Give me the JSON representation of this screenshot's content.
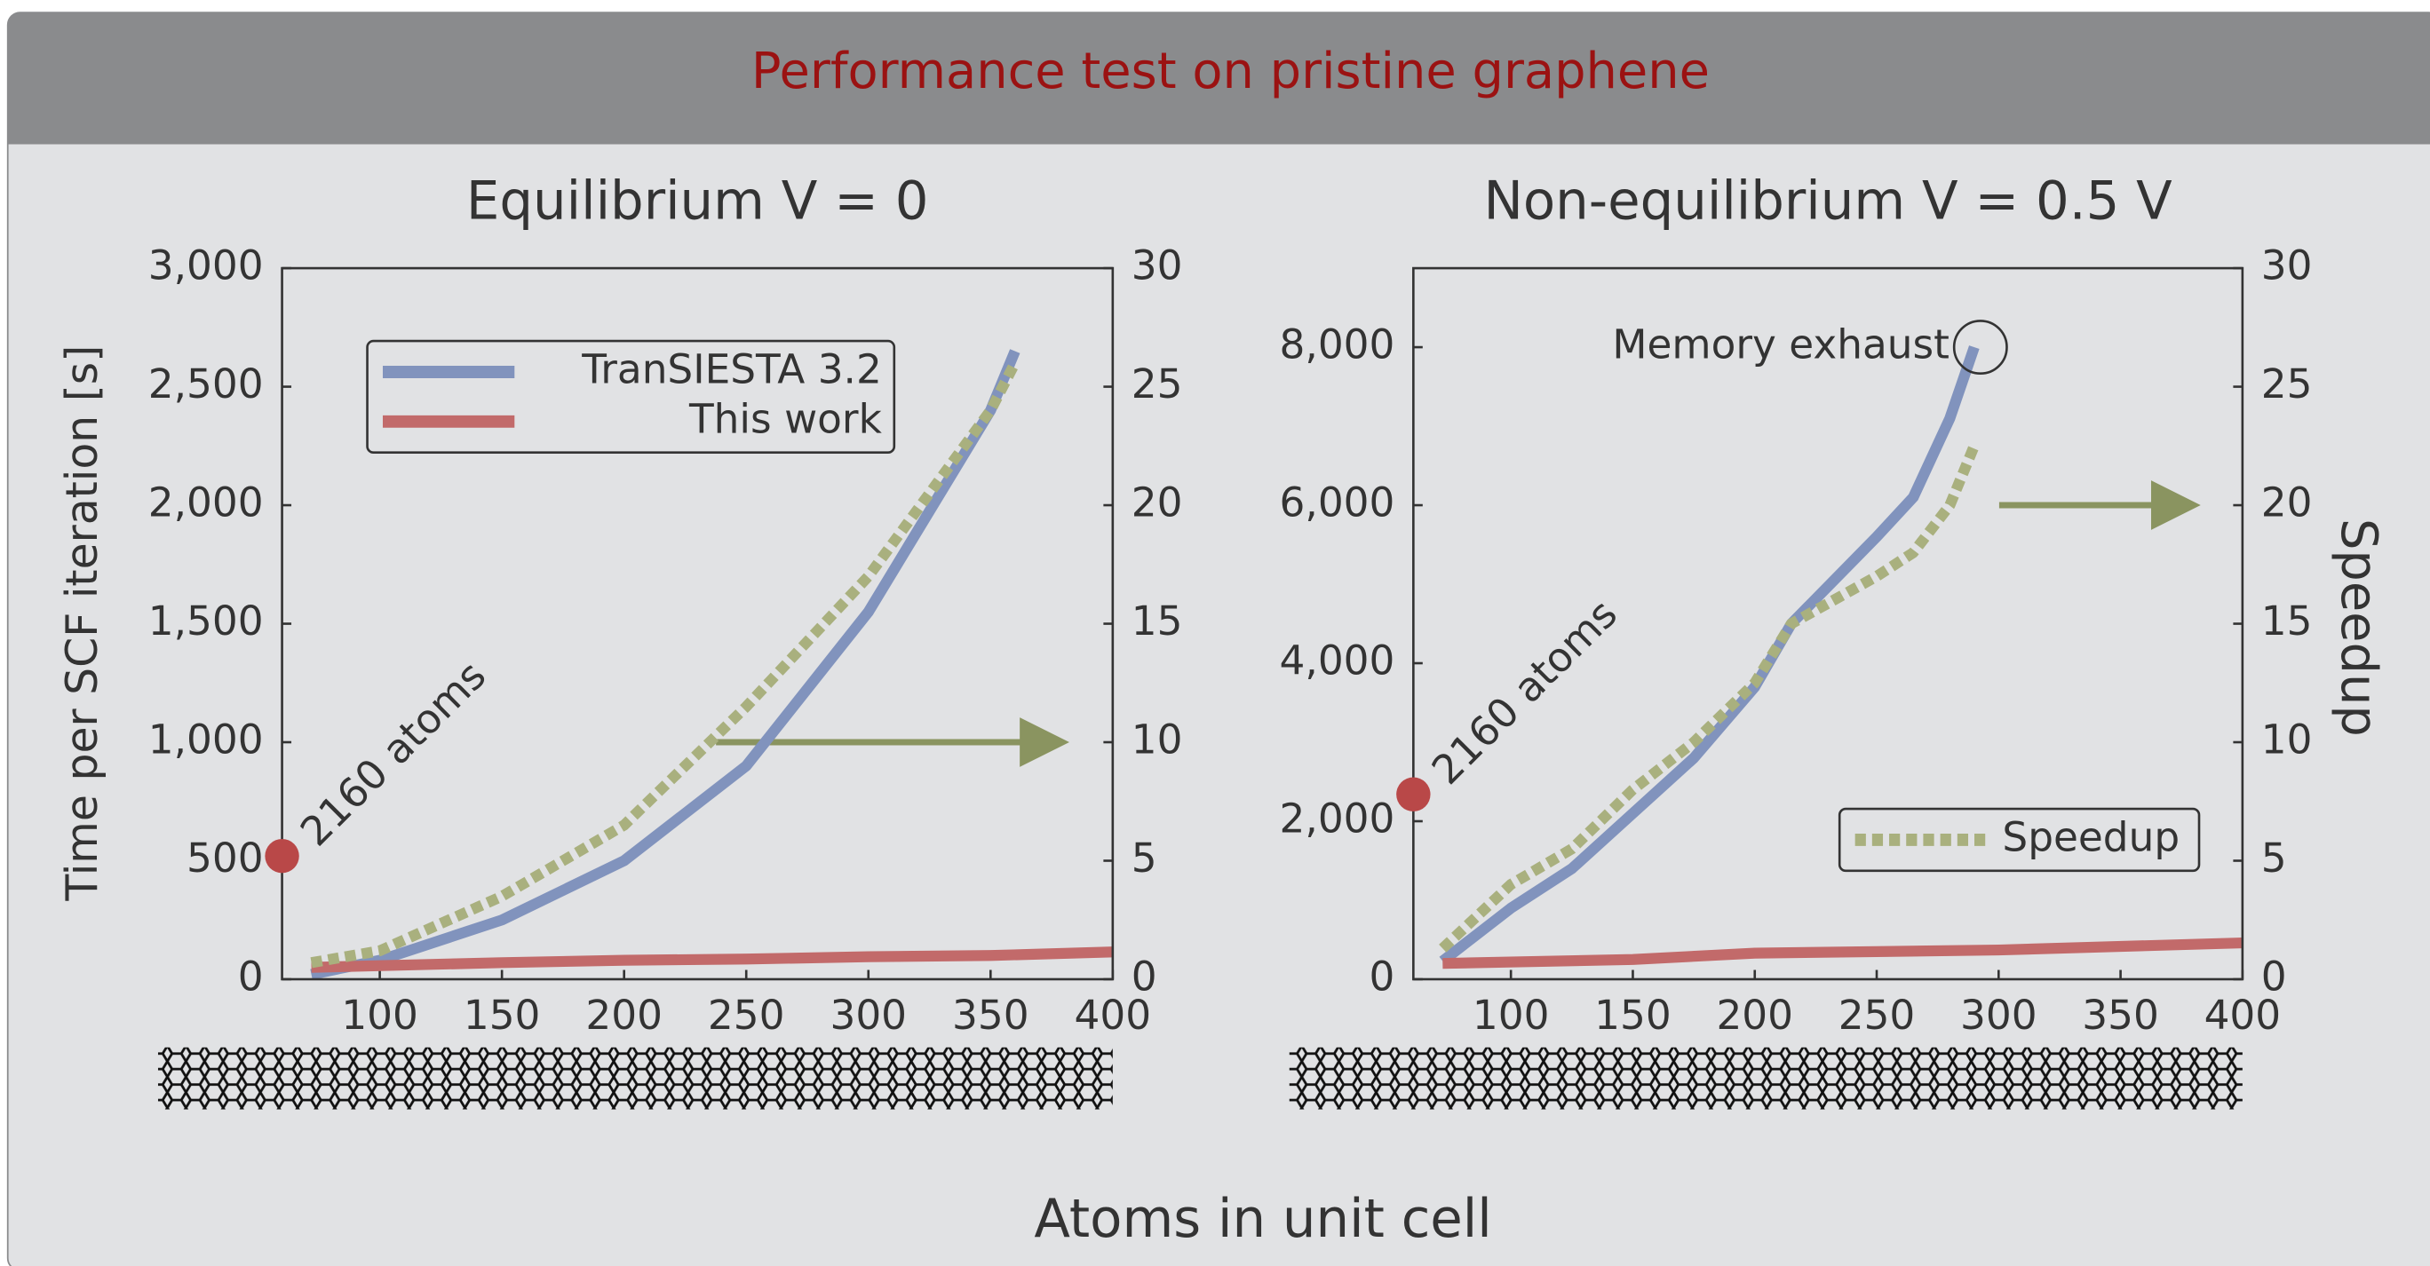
{
  "title": "Performance test on pristine graphene",
  "xlabel": "Atoms in unit cell",
  "chart_data": [
    {
      "type": "line",
      "title": "Equilibrium V = 0",
      "ylabel": "Time per SCF iteration [s]",
      "xlim": [
        60,
        400
      ],
      "xticks": [
        100,
        150,
        200,
        250,
        300,
        350,
        400
      ],
      "ylim": [
        0,
        3000
      ],
      "yticks": [
        0,
        500,
        {
          "value": 1000,
          "label": "1,000"
        },
        {
          "value": 1500,
          "label": "1,500"
        },
        {
          "value": 2000,
          "label": "2,000"
        },
        {
          "value": 2500,
          "label": "2,500"
        },
        {
          "value": 3000,
          "label": "3,000"
        }
      ],
      "y2lim": [
        0,
        30
      ],
      "y2ticks": [
        0,
        5,
        10,
        15,
        20,
        25,
        30
      ],
      "legend": "upper left",
      "series": [
        {
          "name": "TranSIESTA 3.2",
          "color": "#8193bd",
          "legend": true,
          "x": [
            72,
            100,
            150,
            200,
            250,
            300,
            350,
            360
          ],
          "values": [
            20,
            80,
            250,
            500,
            900,
            1550,
            2400,
            2650
          ]
        },
        {
          "name": "This work",
          "color": "#c26a6a",
          "legend": true,
          "x": [
            72,
            150,
            200,
            250,
            300,
            350,
            400
          ],
          "values": [
            50,
            70,
            80,
            85,
            95,
            100,
            115
          ]
        },
        {
          "name": "Speedup",
          "color": "#a9b07e",
          "legend": false,
          "axis": "y2",
          "x": [
            72,
            100,
            150,
            200,
            250,
            300,
            350,
            360
          ],
          "values": [
            0.7,
            1.2,
            3.5,
            6.5,
            11.5,
            17,
            24,
            26
          ]
        }
      ],
      "annotations": [
        {
          "text": "2160 atoms",
          "x": 60,
          "y": 520
        }
      ]
    },
    {
      "type": "line",
      "title": "Non-equilibrium V = 0.5 V",
      "y2label": "Speedup",
      "xlim": [
        60,
        400
      ],
      "xticks": [
        100,
        150,
        200,
        250,
        300,
        350,
        400
      ],
      "ylim": [
        0,
        9000
      ],
      "yticks": [
        0,
        {
          "value": 2000,
          "label": "2,000"
        },
        {
          "value": 4000,
          "label": "4,000"
        },
        {
          "value": 6000,
          "label": "6,000"
        },
        {
          "value": 8000,
          "label": "8,000"
        }
      ],
      "y2lim": [
        0,
        30
      ],
      "y2ticks": [
        0,
        5,
        10,
        15,
        20,
        25,
        30
      ],
      "legend": "lower right",
      "series": [
        {
          "name": "TranSIESTA 3.2",
          "color": "#8193bd",
          "legend": false,
          "x": [
            72,
            100,
            125,
            150,
            175,
            200,
            215,
            250,
            265,
            280,
            290
          ],
          "values": [
            230,
            900,
            1400,
            2100,
            2800,
            3700,
            4500,
            5600,
            6100,
            7100,
            8000
          ]
        },
        {
          "name": "This work",
          "color": "#c26a6a",
          "legend": false,
          "x": [
            72,
            150,
            200,
            250,
            300,
            400
          ],
          "values": [
            200,
            250,
            330,
            350,
            370,
            460
          ]
        },
        {
          "name": "Speedup",
          "color": "#a9b07e",
          "legend": true,
          "axis": "y2",
          "x": [
            72,
            100,
            125,
            150,
            175,
            200,
            215,
            250,
            265,
            280,
            290
          ],
          "values": [
            1.3,
            4,
            5.5,
            8,
            10,
            12.5,
            15,
            17,
            18,
            20,
            22.5
          ]
        }
      ],
      "annotations": [
        {
          "text": "2160 atoms",
          "x": 60,
          "y": 2340
        },
        {
          "text": "Memory exhaust",
          "x": 290,
          "y": 8000
        }
      ]
    }
  ]
}
